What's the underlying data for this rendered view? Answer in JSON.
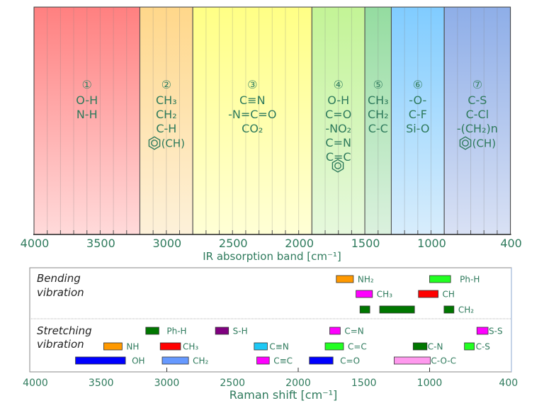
{
  "chart_data": [
    {
      "type": "bar",
      "title": "",
      "xlabel": "IR absorption band [cm⁻¹]",
      "ylabel": "",
      "xlim": [
        4000,
        400
      ],
      "xticks": [
        4000,
        3500,
        3000,
        2500,
        2000,
        1500,
        1000,
        400
      ],
      "minor_tick_step": 100,
      "grid": true,
      "regions": [
        {
          "number": "①",
          "range": [
            4000,
            3200
          ],
          "color_top": "#ff8080",
          "color_bottom": "#ffdada",
          "lines": [
            {
              "text": "O-H"
            },
            {
              "text": "N-H"
            }
          ]
        },
        {
          "number": "②",
          "range": [
            3200,
            2800
          ],
          "color_top": "#ffd78a",
          "color_bottom": "#fdf1da",
          "lines": [
            {
              "text": "CH₃"
            },
            {
              "text": "CH₂"
            },
            {
              "text": "C-H"
            },
            {
              "icon": "benzene-ring",
              "text": "(CH)"
            }
          ]
        },
        {
          "number": "③",
          "range": [
            2800,
            1900
          ],
          "color_top": "#ffff85",
          "color_bottom": "#ffffd6",
          "lines": [
            {
              "text": "C≡N"
            },
            {
              "text": "-N=C=O"
            },
            {
              "text": "CO₂"
            }
          ]
        },
        {
          "number": "④",
          "range": [
            1900,
            1500
          ],
          "color_top": "#c3f496",
          "color_bottom": "#e6f8dd",
          "lines": [
            {
              "text": "O-H"
            },
            {
              "text": "C=O"
            },
            {
              "text": "-NO₂"
            },
            {
              "text": "C=N"
            },
            {
              "text": "C=C"
            },
            {
              "icon": "benzene-ring",
              "text": ""
            }
          ]
        },
        {
          "number": "⑤",
          "range": [
            1500,
            1300
          ],
          "color_top": "#94dca0",
          "color_bottom": "#dbf1de",
          "lines": [
            {
              "text": "CH₃"
            },
            {
              "text": "CH₂"
            },
            {
              "text": "C-C"
            }
          ]
        },
        {
          "number": "⑥",
          "range": [
            1300,
            900
          ],
          "color_top": "#80ccff",
          "color_bottom": "#d8edfc",
          "lines": [
            {
              "text": "-O-"
            },
            {
              "text": "C-F"
            },
            {
              "text": "Si-O"
            }
          ]
        },
        {
          "number": "⑦",
          "range": [
            900,
            400
          ],
          "color_top": "#8eaee8",
          "color_bottom": "#d9e1f4",
          "lines": [
            {
              "text": "C-S"
            },
            {
              "text": "C-Cl"
            },
            {
              "text": "-(CH₂)n"
            },
            {
              "icon": "benzene-ring",
              "text": "(CH)"
            }
          ]
        }
      ]
    },
    {
      "type": "bar",
      "title": "",
      "xlabel": "Raman shift [cm⁻¹]",
      "ylabel": "",
      "xlim": [
        4000,
        400
      ],
      "xticks": [
        4000,
        3500,
        3000,
        2500,
        2000,
        1500,
        1000,
        400
      ],
      "tick_marks": [
        3000,
        2000,
        1000
      ],
      "grid": false,
      "sections": [
        {
          "name_lines": [
            "Bending",
            "vibration"
          ],
          "rows": [
            [
              {
                "label": "NH₂",
                "ranges": [
                  [
                    1710,
                    1580
                  ]
                ],
                "color": "#ff9900"
              },
              {
                "label": "Ph-H",
                "ranges": [
                  [
                    1000,
                    840
                  ]
                ],
                "color": "#22ff22"
              }
            ],
            [
              {
                "label": "CH₃",
                "ranges": [
                  [
                    1560,
                    1435
                  ]
                ],
                "color": "#ff00ff"
              },
              {
                "label": "CH",
                "ranges": [
                  [
                    1085,
                    935
                  ]
                ],
                "color": "#ff0000"
              }
            ],
            [
              {
                "label": "CH₂",
                "ranges": [
                  [
                    1530,
                    1455
                  ],
                  [
                    1380,
                    1115
                  ],
                  [
                    890,
                    815
                  ]
                ],
                "color": "#007700"
              }
            ]
          ]
        },
        {
          "name_lines": [
            "Stretching",
            "vibration"
          ],
          "rows": [
            [
              {
                "label": "Ph-H",
                "ranges": [
                  [
                    3160,
                    3060
                  ]
                ],
                "color": "#007700"
              },
              {
                "label": "S-H",
                "ranges": [
                  [
                    2630,
                    2530
                  ]
                ],
                "color": "#800080"
              },
              {
                "label": "C=N",
                "ranges": [
                  [
                    1760,
                    1680
                  ]
                ],
                "color": "#ff00ff"
              },
              {
                "label": "S-S",
                "ranges": [
                  [
                    640,
                    555
                  ]
                ],
                "color": "#ff00ff"
              }
            ],
            [
              {
                "label": "NH",
                "ranges": [
                  [
                    3480,
                    3340
                  ]
                ],
                "color": "#ff9900"
              },
              {
                "label": "CH₃",
                "ranges": [
                  [
                    3050,
                    2895
                  ]
                ],
                "color": "#ff0000"
              },
              {
                "label": "C≡N",
                "ranges": [
                  [
                    2335,
                    2235
                  ]
                ],
                "color": "#1ec8f5"
              },
              {
                "label": "C=C",
                "ranges": [
                  [
                    1795,
                    1655
                  ]
                ],
                "color": "#22ff22"
              },
              {
                "label": "C-N",
                "ranges": [
                  [
                    1125,
                    1020
                  ]
                ],
                "color": "#007700"
              },
              {
                "label": "C-S",
                "ranges": [
                  [
                    735,
                    660
                  ]
                ],
                "color": "#22ff22"
              }
            ],
            [
              {
                "label": "OH",
                "ranges": [
                  [
                    3695,
                    3315
                  ]
                ],
                "color": "#0000ff"
              },
              {
                "label": "CH₂",
                "ranges": [
                  [
                    3035,
                    2835
                  ]
                ],
                "color": "#6699ff"
              },
              {
                "label": "C≡C",
                "ranges": [
                  [
                    2315,
                    2220
                  ]
                ],
                "color": "#ff00ff"
              },
              {
                "label": "C=O",
                "ranges": [
                  [
                    1915,
                    1735
                  ]
                ],
                "color": "#0000ff"
              },
              {
                "label": "C-O-C",
                "ranges": [
                  [
                    1270,
                    995
                  ]
                ],
                "color": "#ff99ee"
              }
            ]
          ]
        }
      ]
    }
  ]
}
